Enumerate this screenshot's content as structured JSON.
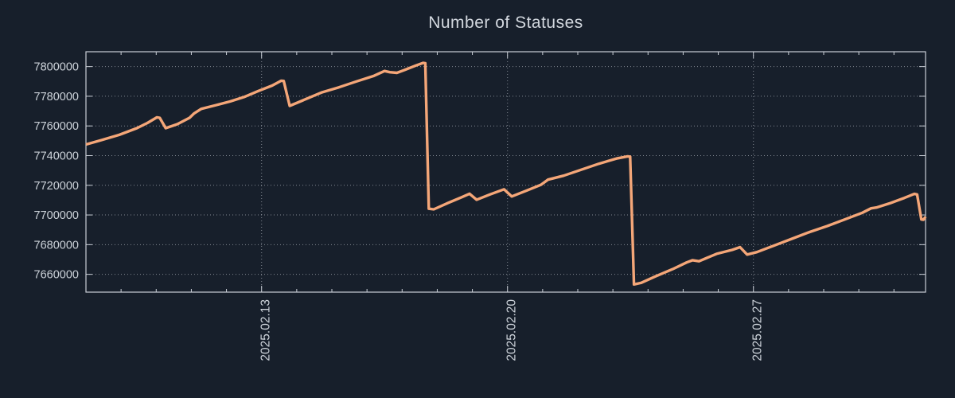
{
  "title": "Number of Statuses",
  "colors": {
    "background": "#171f2b",
    "line": "#f4a678",
    "text": "#ccd2d9",
    "border": "#c9ced6",
    "grid": "#949aa3"
  },
  "chart_data": {
    "type": "line",
    "title": "Number of Statuses",
    "legend_position": "none",
    "x_axis": {
      "unit": "days since 2025.02.08",
      "range": [
        0,
        23.9
      ],
      "major_ticks": [
        {
          "position": 5,
          "label": "2025.02.13"
        },
        {
          "position": 12,
          "label": "2025.02.20"
        },
        {
          "position": 19,
          "label": "2025.02.27"
        }
      ],
      "minor_tick_interval": 1,
      "label_rotation_deg": -90
    },
    "y_axis": {
      "range": [
        7648000,
        7810000
      ],
      "ticks": [
        7800000,
        7780000,
        7760000,
        7740000,
        7720000,
        7700000,
        7680000,
        7660000
      ],
      "grid_style": "dotted"
    },
    "series": [
      {
        "name": "Number of Statuses",
        "color": "#f4a678",
        "points": [
          [
            0.0,
            7747500
          ],
          [
            0.45,
            7750500
          ],
          [
            0.95,
            7754000
          ],
          [
            1.45,
            7758500
          ],
          [
            1.75,
            7762000
          ],
          [
            2.02,
            7765800
          ],
          [
            2.1,
            7765500
          ],
          [
            2.27,
            7758500
          ],
          [
            2.6,
            7761200
          ],
          [
            2.95,
            7765500
          ],
          [
            3.08,
            7768500
          ],
          [
            3.28,
            7771500
          ],
          [
            3.7,
            7774000
          ],
          [
            4.1,
            7776500
          ],
          [
            4.5,
            7779500
          ],
          [
            4.9,
            7783500
          ],
          [
            5.3,
            7787200
          ],
          [
            5.56,
            7790500
          ],
          [
            5.63,
            7790300
          ],
          [
            5.8,
            7773500
          ],
          [
            6.2,
            7777500
          ],
          [
            6.7,
            7782500
          ],
          [
            7.2,
            7786000
          ],
          [
            7.7,
            7790000
          ],
          [
            8.2,
            7793800
          ],
          [
            8.5,
            7797000
          ],
          [
            8.65,
            7796200
          ],
          [
            8.85,
            7795800
          ],
          [
            9.1,
            7798000
          ],
          [
            9.4,
            7800800
          ],
          [
            9.6,
            7802500
          ],
          [
            9.66,
            7802300
          ],
          [
            9.76,
            7704200
          ],
          [
            9.9,
            7703800
          ],
          [
            10.3,
            7708000
          ],
          [
            10.7,
            7712000
          ],
          [
            10.92,
            7714300
          ],
          [
            11.12,
            7710300
          ],
          [
            11.5,
            7713800
          ],
          [
            11.9,
            7717300
          ],
          [
            12.12,
            7712500
          ],
          [
            12.55,
            7716500
          ],
          [
            12.95,
            7720300
          ],
          [
            13.15,
            7723800
          ],
          [
            13.6,
            7726500
          ],
          [
            14.1,
            7730500
          ],
          [
            14.6,
            7734500
          ],
          [
            15.1,
            7738000
          ],
          [
            15.42,
            7739500
          ],
          [
            15.49,
            7739300
          ],
          [
            15.6,
            7653200
          ],
          [
            15.8,
            7654200
          ],
          [
            16.2,
            7658500
          ],
          [
            16.7,
            7663500
          ],
          [
            17.1,
            7668000
          ],
          [
            17.27,
            7669500
          ],
          [
            17.45,
            7668800
          ],
          [
            17.95,
            7673800
          ],
          [
            18.4,
            7676500
          ],
          [
            18.62,
            7678300
          ],
          [
            18.82,
            7673300
          ],
          [
            19.1,
            7675000
          ],
          [
            19.6,
            7679500
          ],
          [
            20.1,
            7684000
          ],
          [
            20.6,
            7688500
          ],
          [
            21.1,
            7692500
          ],
          [
            21.6,
            7697000
          ],
          [
            22.1,
            7701500
          ],
          [
            22.35,
            7704500
          ],
          [
            22.5,
            7705000
          ],
          [
            22.9,
            7708000
          ],
          [
            23.3,
            7711500
          ],
          [
            23.58,
            7714200
          ],
          [
            23.66,
            7713800
          ],
          [
            23.78,
            7697000
          ],
          [
            23.84,
            7696800
          ],
          [
            23.9,
            7698800
          ]
        ]
      }
    ]
  }
}
